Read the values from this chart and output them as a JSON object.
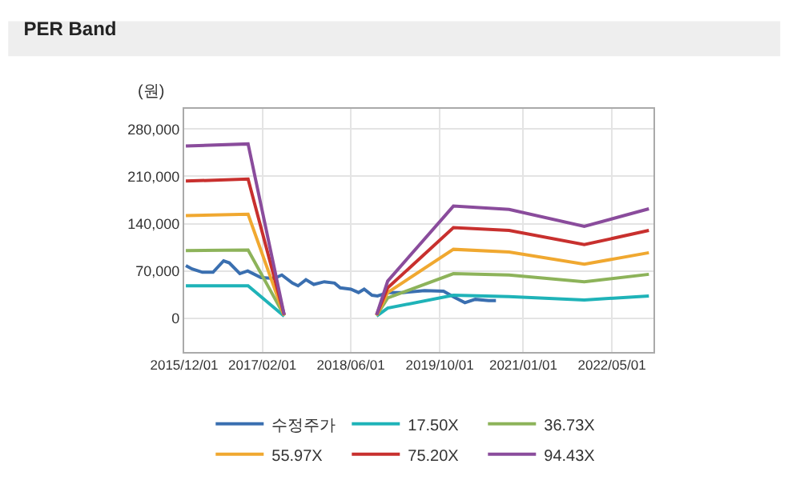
{
  "chart_data": {
    "type": "line",
    "title": "PER Band",
    "ylabel": "(원)",
    "xlim": [
      "2015-12-01",
      "2022-12-15"
    ],
    "xticks": [
      {
        "value": "2015-12-01",
        "label": "2015/12/01"
      },
      {
        "value": "2017-02-01",
        "label": "2017/02/01"
      },
      {
        "value": "2018-06-01",
        "label": "2018/06/01"
      },
      {
        "value": "2019-10-01",
        "label": "2019/10/01"
      },
      {
        "value": "2021-01-01",
        "label": "2021/01/01"
      },
      {
        "value": "2022-05-01",
        "label": "2022/05/01"
      }
    ],
    "ylim": [
      -50000,
      310000
    ],
    "yticks": [
      {
        "value": 0,
        "label": "0"
      },
      {
        "value": 70000,
        "label": "70,000"
      },
      {
        "value": 140000,
        "label": "140,000"
      },
      {
        "value": 210000,
        "label": "210,000"
      },
      {
        "value": 280000,
        "label": "280,000"
      }
    ],
    "grid": true,
    "legend": "bottom",
    "marker": "none",
    "line_style": "solid",
    "x": [
      "2015-12-10",
      "2016-11-15",
      "2017-06-01",
      "2018-01-01",
      "2018-10-20",
      "2018-12-20",
      "2019-12-15",
      "2020-10-15",
      "2021-12-01",
      "2022-11-20"
    ],
    "series": [
      {
        "name": "수정주가",
        "color": "#3a6fb0",
        "x": [
          "2015-12-10",
          "2016-01-13",
          "2016-03-10",
          "2016-05-07",
          "2016-07-04",
          "2016-08-04",
          "2016-10-01",
          "2016-11-13",
          "2017-01-25",
          "2017-04-07",
          "2017-05-19",
          "2017-07-16",
          "2017-08-16",
          "2017-09-28",
          "2017-11-10",
          "2018-01-07",
          "2018-03-04",
          "2018-04-04",
          "2018-06-01",
          "2018-07-13",
          "2018-08-13",
          "2018-09-25",
          "2018-10-25",
          "2018-12-22",
          "2019-03-16",
          "2019-07-10",
          "2019-10-22",
          "2019-12-19",
          "2020-02-16",
          "2020-04-13",
          "2020-06-25",
          "2020-08-04"
        ],
        "values": [
          78000,
          73000,
          68000,
          68000,
          85000,
          82000,
          66000,
          70000,
          60000,
          59000,
          64000,
          52000,
          48000,
          57000,
          50000,
          54000,
          52000,
          45000,
          43000,
          38000,
          43000,
          34000,
          33000,
          38000,
          38000,
          41000,
          40000,
          31000,
          23000,
          28000,
          26000,
          26000
        ]
      },
      {
        "name": "17.50X",
        "color": "#1fb3b8",
        "values": [
          48000,
          48000,
          3000,
          null,
          3000,
          15000,
          34000,
          32000,
          27000,
          33000
        ]
      },
      {
        "name": "36.73X",
        "color": "#8db35a",
        "values": [
          100000,
          101000,
          4000,
          null,
          4000,
          30000,
          66000,
          64000,
          54000,
          65000
        ]
      },
      {
        "name": "55.97X",
        "color": "#f0a830",
        "values": [
          152000,
          154000,
          4000,
          null,
          4000,
          38000,
          102000,
          98000,
          80000,
          97000
        ]
      },
      {
        "name": "75.20X",
        "color": "#c8302e",
        "values": [
          203000,
          206000,
          5000,
          null,
          5000,
          45000,
          134000,
          130000,
          109000,
          130000
        ]
      },
      {
        "name": "94.43X",
        "color": "#8a4c9c",
        "values": [
          255000,
          258000,
          5000,
          null,
          5000,
          55000,
          166000,
          161000,
          136000,
          162000
        ]
      }
    ]
  }
}
